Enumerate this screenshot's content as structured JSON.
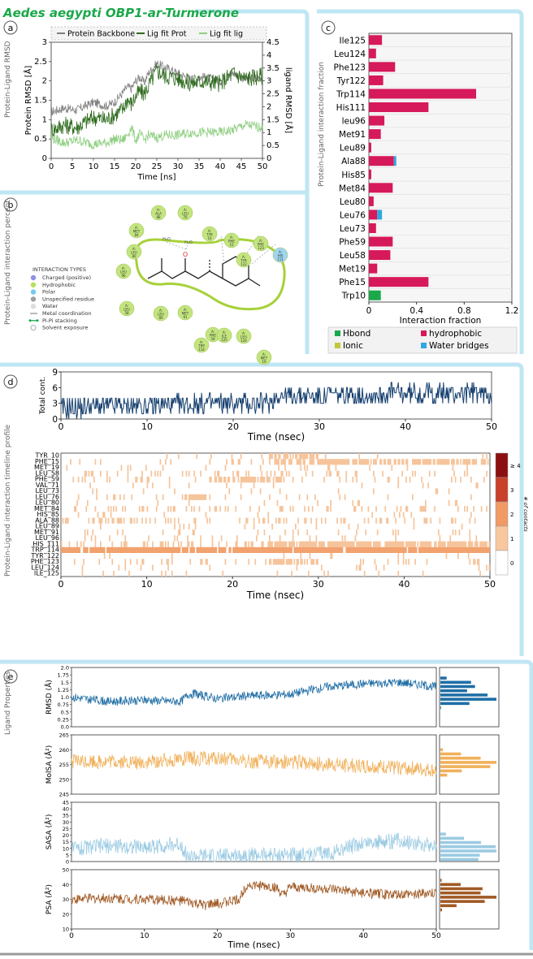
{
  "title": {
    "species": "Aedes aegypti",
    "rest": " OBP1-ar-Turmerone"
  },
  "panel_letters": [
    "a",
    "b",
    "c",
    "d",
    "e"
  ],
  "side_labels": {
    "a": "Protein-Ligand RMSD",
    "b": "Protein-Ligand interaction percent",
    "c": "Protein-Ligand interaction fraction",
    "d": "Protein-Ligand interaction timeline profile",
    "e": "Ligand Properties"
  },
  "colors": {
    "accent_frame": "#bfe6f3",
    "title_green": "#1aa84a",
    "backbone": "#7f7f7f",
    "fit_prot": "#2e6b1d",
    "fit_lig": "#8fcf82",
    "hbond": "#1aa84a",
    "hydrophobic": "#d6195a",
    "ionic": "#c3c83a",
    "water": "#2ea8e0",
    "timeline": "#153f6e",
    "rmsd": "#1f6ea5",
    "molsa": "#f0b15b",
    "sasa": "#9ccbe3",
    "psa": "#a05a25",
    "light_green": "#c3e57e",
    "ligand_ring": "#a7d13a"
  },
  "interaction_legend": {
    "title": "INTERACTION TYPES",
    "items": [
      {
        "label": "Charged (positive)",
        "color": "#8e90e8"
      },
      {
        "label": "Hydrophobic",
        "color": "#b6e05e"
      },
      {
        "label": "Polar",
        "color": "#74c9ee"
      },
      {
        "label": "Unspecified residue",
        "color": "#a0a0a0"
      },
      {
        "label": "Water",
        "color": "#dddddd"
      },
      {
        "label": "Metal coordination",
        "color": "#888888"
      },
      {
        "label": "Pi-Pi stacking",
        "color": "#1f8a3a"
      },
      {
        "label": "Solvent exposure",
        "color": "#cccccc"
      }
    ]
  },
  "residue_bubbles": [
    {
      "label": "A:ALA 88",
      "color": "#c3e57e"
    },
    {
      "label": "A:LEU 76",
      "color": "#c3e57e"
    },
    {
      "label": "A:MET 84",
      "color": "#c3e57e"
    },
    {
      "label": "A:TYR 10",
      "color": "#c3e57e"
    },
    {
      "label": "A:PHE 15",
      "color": "#c3e57e"
    },
    {
      "label": "A:PHE 123",
      "color": "#c3e57e"
    },
    {
      "label": "A:LEU 80",
      "color": "#c3e57e"
    },
    {
      "label": "A:TYR 122",
      "color": "#c3e57e"
    },
    {
      "label": "A:HIS 111",
      "color": "#9fd6ee"
    },
    {
      "label": "A:LEU 96",
      "color": "#c3e57e"
    },
    {
      "label": "A:LEU 58",
      "color": "#c3e57e"
    },
    {
      "label": "A:LEU 89",
      "color": "#c3e57e"
    },
    {
      "label": "A:MET 91",
      "color": "#c3e57e"
    },
    {
      "label": "A:PHE 59",
      "color": "#c3e57e"
    },
    {
      "label": "A:TRP 114",
      "color": "#c3e57e"
    },
    {
      "label": "A:ILE 125",
      "color": "#c3e57e"
    },
    {
      "label": "A:LEU 124",
      "color": "#c3e57e"
    },
    {
      "label": "A:MET 19",
      "color": "#c3e57e"
    }
  ],
  "water_labels": [
    "H₂O",
    "H₂O"
  ],
  "chart_data": [
    {
      "id": "a",
      "type": "line",
      "xlabel": "Time [ns]",
      "ylabel": "Protein RMSD [Å]",
      "ylabel_right": "ligand RMSD [Å]",
      "xlim": [
        0,
        50
      ],
      "ylim": [
        0,
        3
      ],
      "ylim_right": [
        0,
        4.5
      ],
      "xticks": [
        0,
        5,
        10,
        15,
        20,
        25,
        30,
        35,
        40,
        45,
        50
      ],
      "yticks": [
        0,
        0.5,
        1,
        1.5,
        2,
        2.5,
        3
      ],
      "yticks_right": [
        0,
        0.5,
        1,
        1.5,
        2,
        2.5,
        3,
        3.5,
        4,
        4.5
      ],
      "legend": "top",
      "series": [
        {
          "name": "Protein Backbone",
          "axis": "left",
          "x": [
            0,
            3,
            6,
            10,
            13,
            15,
            17,
            18,
            19,
            20,
            21,
            22,
            23,
            25,
            27,
            30,
            33,
            36,
            40,
            43,
            46,
            50
          ],
          "values": [
            1.2,
            1.3,
            1.25,
            1.45,
            1.35,
            1.45,
            1.7,
            1.85,
            1.8,
            2.0,
            2.1,
            1.95,
            2.2,
            2.45,
            2.35,
            2.2,
            2.05,
            2.1,
            2.0,
            2.2,
            2.05,
            2.1
          ]
        },
        {
          "name": "Lig fit Prot",
          "axis": "right",
          "x": [
            0,
            3,
            6,
            10,
            13,
            15,
            17,
            18,
            19,
            20,
            21,
            22,
            23,
            25,
            27,
            30,
            33,
            36,
            40,
            43,
            46,
            50
          ],
          "values": [
            1.1,
            1.3,
            1.2,
            1.6,
            1.5,
            1.7,
            1.9,
            2.3,
            2.1,
            2.4,
            2.6,
            2.5,
            2.8,
            3.4,
            3.2,
            3.1,
            2.9,
            3.0,
            2.9,
            3.3,
            3.1,
            3.2
          ]
        },
        {
          "name": "Lig fit lig",
          "axis": "right",
          "x": [
            0,
            3,
            6,
            10,
            13,
            15,
            17,
            18,
            19,
            20,
            21,
            22,
            23,
            25,
            27,
            30,
            33,
            36,
            40,
            43,
            46,
            50
          ],
          "values": [
            0.8,
            0.6,
            0.7,
            0.55,
            0.6,
            0.75,
            0.7,
            0.9,
            1.2,
            0.7,
            0.95,
            0.7,
            0.9,
            0.8,
            0.9,
            0.9,
            1.0,
            1.0,
            1.0,
            1.1,
            1.3,
            1.2
          ]
        }
      ]
    },
    {
      "id": "c",
      "type": "bar",
      "orientation": "horizontal",
      "xlabel": "Interaction fraction",
      "xlim": [
        0,
        1.2
      ],
      "xticks": [
        0,
        0.4,
        0.8,
        1.2
      ],
      "categories": [
        "Ile125",
        "Leu124",
        "Phe123",
        "Tyr122",
        "Trp114",
        "His111",
        "leu96",
        "Met91",
        "Leu89",
        "Ala88",
        "His85",
        "Met84",
        "Leu80",
        "Leu76",
        "Leu73",
        "Phe59",
        "Leu58",
        "Met19",
        "Phe15",
        "Trp10"
      ],
      "series": [
        {
          "name": "Hbond",
          "values": [
            0,
            0,
            0,
            0,
            0,
            0,
            0,
            0,
            0,
            0,
            0,
            0,
            0,
            0,
            0,
            0,
            0,
            0,
            0,
            0.1
          ]
        },
        {
          "name": "hydrophobic",
          "values": [
            0.11,
            0.06,
            0.22,
            0.12,
            0.9,
            0.5,
            0.13,
            0.1,
            0.02,
            0.21,
            0.02,
            0.2,
            0.04,
            0.07,
            0.06,
            0.2,
            0.18,
            0.07,
            0.5,
            0
          ]
        },
        {
          "name": "Ionic",
          "values": [
            0,
            0,
            0,
            0,
            0,
            0,
            0,
            0,
            0,
            0,
            0,
            0,
            0,
            0,
            0,
            0,
            0,
            0,
            0,
            0
          ]
        },
        {
          "name": "Water bridges",
          "values": [
            0,
            0,
            0,
            0,
            0,
            0,
            0,
            0,
            0,
            0.02,
            0,
            0,
            0,
            0.04,
            0,
            0,
            0,
            0,
            0,
            0
          ]
        }
      ],
      "legend": "bottom"
    },
    {
      "id": "d1",
      "type": "line",
      "xlabel": "Time (nsec)",
      "ylabel": "Total cont.",
      "xlim": [
        0,
        50
      ],
      "ylim": [
        0,
        9
      ],
      "xticks": [
        0,
        10,
        20,
        30,
        40,
        50
      ],
      "yticks": [
        0,
        3,
        6,
        9
      ],
      "x": [
        0,
        5,
        10,
        15,
        20,
        24,
        25,
        30,
        35,
        40,
        45,
        50
      ],
      "values": [
        2,
        2.5,
        2.5,
        2.8,
        3,
        3,
        4.5,
        4.5,
        4.5,
        5,
        4.8,
        5
      ]
    },
    {
      "id": "d2",
      "type": "heatmap",
      "xlabel": "Time (nsec)",
      "xlim": [
        0,
        50
      ],
      "xticks": [
        0,
        10,
        20,
        30,
        40,
        50
      ],
      "rows": [
        "TYR_10",
        "PHE_15",
        "MET_19",
        "LEU_58",
        "PHE_59",
        "VAL_71",
        "LEU_73",
        "LEU_76",
        "LEU_80",
        "MET_84",
        "HIS_85",
        "ALA_88",
        "LEU_89",
        "MET_91",
        "LEU_96",
        "HIS_111",
        "TRP_114",
        "TYR_122",
        "PHE_123",
        "LEU_124",
        "ILE_125"
      ],
      "row_density": [
        0.08,
        0.5,
        0.05,
        0.15,
        0.35,
        0.03,
        0.06,
        0.12,
        0.04,
        0.18,
        0.04,
        0.2,
        0.04,
        0.1,
        0.06,
        0.55,
        0.95,
        0.04,
        0.2,
        0.06,
        0.08
      ],
      "colorbar": {
        "label": "# of contacts",
        "ticks": [
          "0",
          "1",
          "2",
          "3",
          "≥ 4"
        ],
        "colors": [
          "#ffffff",
          "#f8c79e",
          "#f09a66",
          "#c9402b",
          "#8b0f0f"
        ]
      }
    },
    {
      "id": "e1",
      "type": "line",
      "ylabel": "RMSD (Å)",
      "xlim": [
        0,
        50
      ],
      "ylim": [
        0,
        2.0
      ],
      "yticks": [
        0,
        0.25,
        0.5,
        0.75,
        1.0,
        1.25,
        1.5,
        1.75,
        2.0
      ],
      "ytick_labels": [
        "0.0",
        "0.25",
        "0.5",
        "0.75",
        "1.0",
        "1.25",
        "1.5",
        "1.75",
        "2.0"
      ],
      "x": [
        0,
        5,
        10,
        15,
        16,
        17,
        20,
        25,
        30,
        35,
        40,
        45,
        50
      ],
      "values": [
        1.0,
        0.85,
        0.9,
        0.85,
        1.1,
        1.1,
        0.95,
        1.05,
        1.1,
        1.35,
        1.45,
        1.5,
        1.35
      ]
    },
    {
      "id": "e2",
      "type": "line",
      "ylabel": "MolSA (Å²)",
      "xlim": [
        0,
        50
      ],
      "ylim": [
        245,
        265
      ],
      "yticks": [
        245,
        250,
        255,
        260,
        265
      ],
      "x": [
        0,
        5,
        10,
        15,
        20,
        25,
        30,
        35,
        40,
        45,
        50
      ],
      "values": [
        256,
        256,
        255.5,
        257,
        257,
        256,
        256,
        255,
        254.5,
        254,
        253
      ]
    },
    {
      "id": "e3",
      "type": "line",
      "ylabel": "SASA (Å²)",
      "xlim": [
        0,
        50
      ],
      "ylim": [
        0,
        45
      ],
      "yticks": [
        0,
        5,
        10,
        15,
        20,
        25,
        30,
        35,
        40,
        45
      ],
      "x": [
        0,
        5,
        10,
        15,
        16,
        18,
        20,
        25,
        30,
        35,
        40,
        45,
        50
      ],
      "values": [
        10,
        12,
        11,
        13,
        3,
        4,
        4,
        5,
        5,
        6,
        14,
        16,
        12
      ]
    },
    {
      "id": "e4",
      "type": "line",
      "ylabel": "PSA (Å²)",
      "xlabel": "Time (nsec)",
      "xlim": [
        0,
        50
      ],
      "ylim": [
        10,
        50
      ],
      "yticks": [
        10,
        20,
        30,
        40,
        50
      ],
      "xticks": [
        0,
        10,
        20,
        30,
        40,
        50
      ],
      "x": [
        0,
        5,
        10,
        15,
        18,
        20,
        23,
        24,
        28,
        29,
        30,
        35,
        40,
        45,
        50
      ],
      "values": [
        30,
        31,
        30,
        29,
        26,
        27,
        30,
        40,
        38,
        32,
        38,
        37,
        34,
        33,
        34
      ]
    }
  ]
}
